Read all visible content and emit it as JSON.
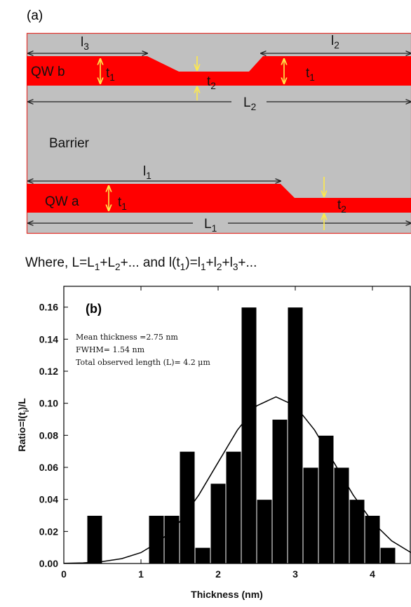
{
  "panel_a": {
    "tag": "(a)",
    "labels": {
      "l3": {
        "text": "l",
        "sub": "3"
      },
      "l2": {
        "text": "l",
        "sub": "2"
      },
      "qwb": {
        "text": "QW b"
      },
      "qwb_t1": {
        "text": "t",
        "sub": "1"
      },
      "qwb_t2": {
        "text": "t",
        "sub": "2"
      },
      "qwb_t1_right": {
        "text": "t",
        "sub": "1"
      },
      "L2": {
        "text": "L",
        "sub": "2"
      },
      "barrier": {
        "text": "Barrier"
      },
      "l1": {
        "text": "l",
        "sub": "1"
      },
      "qwa": {
        "text": "QW a"
      },
      "qwa_t1": {
        "text": "t",
        "sub": "1"
      },
      "qwa_t2": {
        "text": "t",
        "sub": "2"
      },
      "L1": {
        "text": "L",
        "sub": "1"
      }
    },
    "formula": [
      {
        "text": "Where, L=L",
        "sub": "1"
      },
      {
        "text": "+L",
        "sub": "2"
      },
      {
        "text": "+... and l(t",
        "sub": "1"
      },
      {
        "text": ")=l",
        "sub": "1"
      },
      {
        "text": "+l",
        "sub": "2"
      },
      {
        "text": "+l",
        "sub": "3"
      },
      {
        "text": "+..."
      }
    ]
  },
  "chart_data": {
    "type": "histogram",
    "tag": "(b)",
    "annotations": [
      "Mean thickness =2.75 nm",
      "FWHM= 1.54 nm",
      "Total observed length (L)= 4.2 μm"
    ],
    "xlabel": "Thickness (nm)",
    "ylabel": [
      {
        "text": "Ratio=l(t",
        "sub": "i"
      },
      {
        "text": ")/L"
      }
    ],
    "bins": [
      0.3,
      0.5,
      0.7,
      0.9,
      1.1,
      1.3,
      1.5,
      1.7,
      1.9,
      2.1,
      2.3,
      2.5,
      2.7,
      2.9,
      3.1,
      3.3,
      3.5,
      3.7,
      3.9,
      4.1,
      4.3
    ],
    "values": [
      0.03,
      0,
      0,
      0,
      0.03,
      0.03,
      0.07,
      0.01,
      0.05,
      0.07,
      0.16,
      0.04,
      0.09,
      0.16,
      0.06,
      0.08,
      0.06,
      0.04,
      0.03,
      0.01
    ],
    "color": "#000000",
    "curve": {
      "x": [
        0,
        0.25,
        0.5,
        0.75,
        1,
        1.25,
        1.5,
        1.75,
        2,
        2.25,
        2.5,
        2.75,
        3,
        3.25,
        3.5,
        3.75,
        4,
        4.25,
        4.5
      ],
      "values": [
        0.0001,
        0.0004,
        0.0012,
        0.003,
        0.0068,
        0.0141,
        0.0259,
        0.0428,
        0.0631,
        0.0833,
        0.0984,
        0.104,
        0.0984,
        0.0833,
        0.0631,
        0.0428,
        0.0259,
        0.0141,
        0.0068
      ],
      "color": "#000000"
    },
    "xlim": [
      0,
      4.5
    ],
    "ylim": [
      0,
      0.173
    ],
    "xticks": [
      0,
      1,
      2,
      3,
      4
    ],
    "yticks": [
      {
        "value": 0,
        "label": "0.00"
      },
      {
        "value": 0.02,
        "label": "0.02"
      },
      {
        "value": 0.04,
        "label": "0.04"
      },
      {
        "value": 0.06,
        "label": "0.06"
      },
      {
        "value": 0.08,
        "label": "0.08"
      },
      {
        "value": 0.1,
        "label": "0.10"
      },
      {
        "value": 0.12,
        "label": "0.12"
      },
      {
        "value": 0.14,
        "label": "0.14"
      },
      {
        "value": 0.16,
        "label": "0.16"
      }
    ]
  }
}
